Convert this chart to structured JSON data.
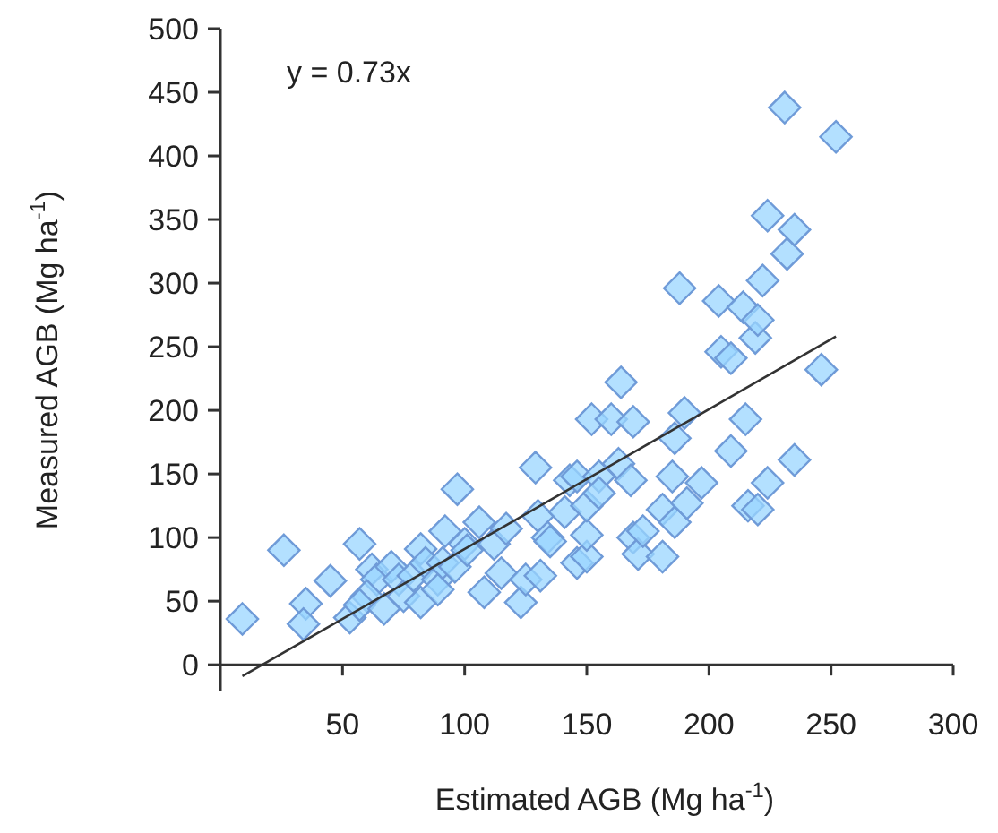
{
  "chart_data": {
    "type": "scatter",
    "xlabel": "Estimated AGB (Mg ha$^{-1}$)",
    "ylabel": "Measured AGB (Mg ha$^{-1}$)",
    "annotations": [
      "y = 0.73x"
    ],
    "xlim": [
      0,
      300
    ],
    "ylim": [
      -21,
      500
    ],
    "xticks": [
      50,
      100,
      150,
      200,
      250,
      300
    ],
    "yticks": [
      0,
      50,
      100,
      150,
      200,
      250,
      300,
      350,
      400,
      450,
      500
    ],
    "grid": false,
    "series": [
      {
        "marker": "diamond",
        "color": "#6f9bd8",
        "x": [
          9,
          26,
          35,
          34,
          45,
          53,
          57,
          62,
          64,
          60,
          57,
          67,
          70,
          73,
          75,
          79,
          82,
          82,
          84,
          89,
          91,
          92,
          97,
          96,
          100,
          101,
          89,
          106,
          108,
          112,
          115,
          117,
          123,
          125,
          129,
          130,
          131,
          134,
          135,
          141,
          143,
          146,
          146,
          150,
          150,
          150,
          152,
          155,
          155,
          160,
          163,
          164,
          169,
          168,
          169,
          171,
          173,
          181,
          181,
          185,
          186,
          186,
          188,
          190,
          191,
          197,
          204,
          205,
          209,
          209,
          214,
          215,
          216,
          220,
          219,
          220,
          222,
          224,
          224,
          231,
          232,
          235,
          235,
          246,
          252
        ],
        "values": [
          36,
          90,
          48,
          32,
          66,
          37,
          95,
          75,
          67,
          54,
          47,
          44,
          77,
          67,
          54,
          70,
          91,
          49,
          80,
          67,
          80,
          105,
          138,
          77,
          95,
          90,
          59,
          112,
          57,
          95,
          72,
          107,
          49,
          67,
          155,
          117,
          70,
          100,
          97,
          120,
          145,
          148,
          80,
          85,
          102,
          125,
          193,
          148,
          135,
          193,
          158,
          222,
          191,
          145,
          100,
          87,
          105,
          85,
          122,
          148,
          178,
          112,
          296,
          198,
          127,
          143,
          286,
          246,
          241,
          168,
          281,
          193,
          125,
          122,
          257,
          271,
          302,
          143,
          353,
          438,
          323,
          161,
          342,
          232,
          415
        ]
      },
      {
        "type": "line",
        "color": "#333333",
        "x": [
          9,
          252
        ],
        "values": [
          -9,
          258
        ]
      }
    ]
  }
}
